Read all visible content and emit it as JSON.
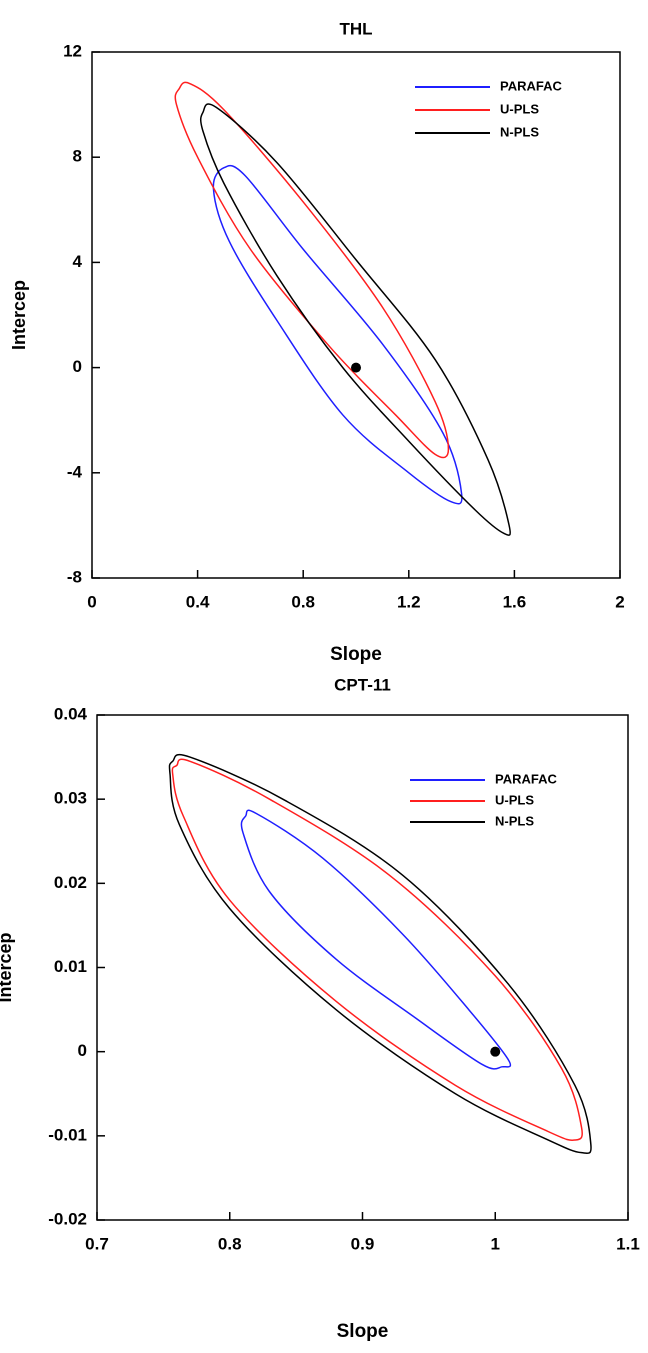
{
  "chart_data": [
    {
      "type": "line",
      "title": "THL",
      "x_label": "Slope",
      "y_label": "Intercep",
      "xlim": [
        0,
        2
      ],
      "ylim": [
        -8,
        12
      ],
      "xticks": [
        0,
        0.4,
        0.8,
        1.2,
        1.6,
        2
      ],
      "yticks": [
        -8,
        -4,
        0,
        4,
        8,
        12
      ],
      "legend": "upper right",
      "closed": true,
      "series": [
        {
          "name": "PARAFAC",
          "color": "#1f1fff",
          "x": [
            0.5,
            0.58,
            0.8,
            1.1,
            1.33,
            1.4,
            1.36,
            1.2,
            0.95,
            0.7,
            0.52,
            0.46
          ],
          "values": [
            7.6,
            7.3,
            4.5,
            0.9,
            -2.5,
            -4.8,
            -5.1,
            -4.0,
            -1.8,
            1.8,
            4.8,
            6.8
          ]
        },
        {
          "name": "U-PLS",
          "color": "#ff1f1f",
          "x": [
            0.33,
            0.37,
            0.5,
            0.8,
            1.1,
            1.3,
            1.35,
            1.3,
            1.15,
            0.9,
            0.6,
            0.4,
            0.32
          ],
          "values": [
            10.6,
            10.8,
            9.8,
            6.3,
            2.3,
            -1.3,
            -3.1,
            -3.3,
            -1.8,
            0.8,
            4.5,
            8.0,
            10.0
          ]
        },
        {
          "name": "N-PLS",
          "color": "#000000",
          "x": [
            0.42,
            0.47,
            0.7,
            1.0,
            1.3,
            1.5,
            1.58,
            1.56,
            1.45,
            1.2,
            0.95,
            0.7,
            0.5,
            0.42
          ],
          "values": [
            9.7,
            9.9,
            7.8,
            4.1,
            0.3,
            -3.5,
            -6.0,
            -6.3,
            -5.4,
            -2.8,
            0.0,
            3.5,
            7.0,
            9.0
          ]
        }
      ],
      "marker": {
        "x": 1,
        "y": 0
      }
    },
    {
      "type": "line",
      "title": "CPT-11",
      "x_label": "Slope",
      "y_label": "Intercep",
      "xlim": [
        0.7,
        1.1
      ],
      "ylim": [
        -0.02,
        0.04
      ],
      "xticks": [
        0.7,
        0.8,
        0.9,
        1,
        1.1
      ],
      "yticks": [
        -0.02,
        -0.01,
        0,
        0.01,
        0.02,
        0.03,
        0.04
      ],
      "legend": "upper right",
      "closed": true,
      "series": [
        {
          "name": "PARAFAC",
          "color": "#1f1fff",
          "x": [
            0.812,
            0.82,
            0.87,
            0.93,
            0.98,
            1.01,
            1.005,
            0.99,
            0.94,
            0.88,
            0.83,
            0.81
          ],
          "values": [
            0.028,
            0.0283,
            0.023,
            0.014,
            0.005,
            -0.001,
            -0.0018,
            -0.0015,
            0.004,
            0.011,
            0.019,
            0.026
          ]
        },
        {
          "name": "U-PLS",
          "color": "#ff1f1f",
          "x": [
            0.76,
            0.77,
            0.83,
            0.92,
            1.0,
            1.05,
            1.065,
            1.06,
            1.04,
            0.97,
            0.88,
            0.8,
            0.765,
            0.757
          ],
          "values": [
            0.034,
            0.0345,
            0.03,
            0.021,
            0.009,
            -0.002,
            -0.009,
            -0.0105,
            -0.0095,
            -0.004,
            0.006,
            0.018,
            0.028,
            0.033
          ]
        },
        {
          "name": "N-PLS",
          "color": "#000000",
          "x": [
            0.757,
            0.77,
            0.84,
            0.93,
            1.01,
            1.06,
            1.072,
            1.065,
            1.04,
            0.97,
            0.88,
            0.8,
            0.762,
            0.755
          ],
          "values": [
            0.0345,
            0.035,
            0.03,
            0.021,
            0.008,
            -0.004,
            -0.011,
            -0.012,
            -0.0105,
            -0.005,
            0.005,
            0.017,
            0.027,
            0.033
          ]
        }
      ],
      "marker": {
        "x": 1,
        "y": 0
      }
    }
  ]
}
